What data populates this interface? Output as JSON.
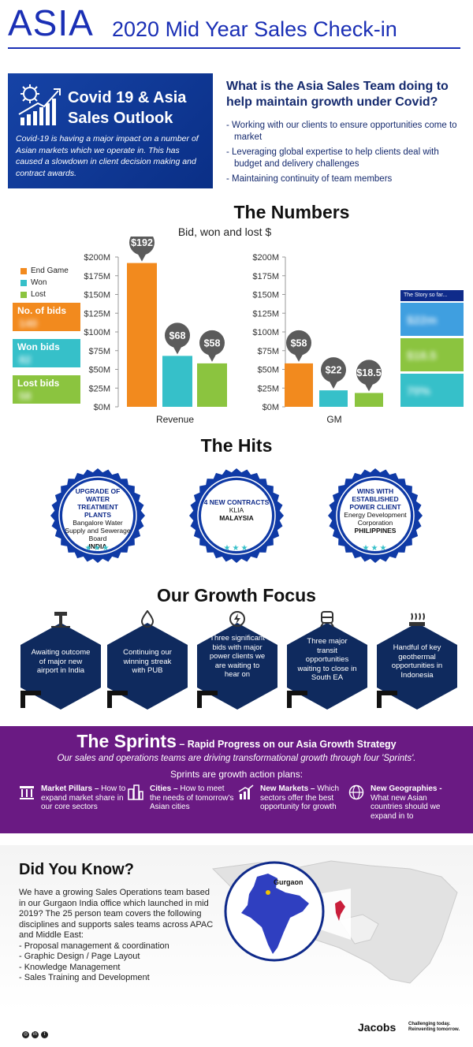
{
  "header": {
    "asia": "ASIA",
    "title": "2020 Mid Year Sales Check-in"
  },
  "covid": {
    "title_line1": "Covid 19 & Asia",
    "title_line2": "Sales Outlook",
    "text": "Covid-19 is having a major impact on a number of Asian markets which we operate in. This has caused a slowdown in client decision making and contract awards."
  },
  "question": {
    "title": "What is the Asia Sales Team doing to help maintain growth under Covid?",
    "bullets": [
      "- Working with our clients to ensure opportunities come to market",
      "- Leveraging global expertise to help clients deal with budget and delivery challenges",
      "- Maintaining continuity of team members"
    ]
  },
  "numbers": {
    "title": "The Numbers",
    "subtitle": "Bid, won and lost $",
    "legend": [
      "End Game",
      "Won",
      "Lost"
    ],
    "kpi": [
      {
        "label": "No. of bids",
        "value": "140",
        "color": "#f28a1e"
      },
      {
        "label": "Won bids",
        "value": "82",
        "color": "#36c0c9"
      },
      {
        "label": "Lost bids",
        "value": "58",
        "color": "#8bc43f"
      }
    ],
    "story": {
      "header": "The Story so far...",
      "boxes": [
        {
          "value": "$22m",
          "color": "#3f9fe0"
        },
        {
          "value": "$18.5",
          "color": "#8bc43f"
        },
        {
          "value": "70%",
          "color": "#36c0c9"
        }
      ]
    }
  },
  "chart_data": [
    {
      "type": "bar",
      "categories": [
        "End Game",
        "Won",
        "Lost"
      ],
      "series": [
        {
          "name": "Revenue",
          "values": [
            192,
            68,
            58
          ]
        }
      ],
      "value_labels": [
        "$192",
        "$68",
        "$58"
      ],
      "xlabel": "Revenue",
      "ylim": [
        0,
        200
      ],
      "ticks": [
        "$0M",
        "$25M",
        "$50M",
        "$75M",
        "$100M",
        "$125M",
        "$150M",
        "$175M",
        "$200M"
      ],
      "colors": [
        "#f28a1e",
        "#36c0c9",
        "#8bc43f"
      ]
    },
    {
      "type": "bar",
      "categories": [
        "End Game",
        "Won",
        "Lost"
      ],
      "series": [
        {
          "name": "GM",
          "values": [
            58,
            22,
            18.5
          ]
        }
      ],
      "value_labels": [
        "$58",
        "$22",
        "$18.5"
      ],
      "xlabel": "GM",
      "ylim": [
        0,
        200
      ],
      "ticks": [
        "$0M",
        "$25M",
        "$50M",
        "$75M",
        "$100M",
        "$125M",
        "$150M",
        "$175M",
        "$200M"
      ],
      "colors": [
        "#f28a1e",
        "#36c0c9",
        "#8bc43f"
      ]
    }
  ],
  "hits": {
    "title": "The Hits",
    "items": [
      {
        "head": "UPGRADE OF WATER TREATMENT PLANTS",
        "client": "Bangalore Water Supply and Sewerage Board",
        "country": "INDIA"
      },
      {
        "head": "4 NEW CONTRACTS",
        "client": "KLIA",
        "country": "MALAYSIA"
      },
      {
        "head": "WINS WITH ESTABLISHED POWER CLIENT",
        "client": "Energy Development Corporation",
        "country": "PHILIPPINES"
      }
    ],
    "stars": "★★★"
  },
  "growth": {
    "title": "Our Growth Focus",
    "items": [
      {
        "text": "Awaiting outcome of major new airport in India",
        "icon": "airport-icon"
      },
      {
        "text": "Continuing our winning streak with PUB",
        "icon": "water-drop-icon"
      },
      {
        "text": "Three significant bids with major power clients we are waiting to hear on",
        "icon": "power-icon"
      },
      {
        "text": "Three major transit opportunities waiting to close in South EA",
        "icon": "train-icon"
      },
      {
        "text": "Handful of key geothermal opportunities in Indonesia",
        "icon": "geothermal-icon"
      }
    ]
  },
  "sprints": {
    "title": "The Sprints",
    "title_suffix": " – Rapid Progress on our Asia Growth Strategy",
    "desc": "Our sales and operations teams are driving  transformational growth through four 'Sprints'.",
    "plans": "Sprints are growth action plans:",
    "items": [
      {
        "label": "Market Pillars –",
        "text": " How to expand market share in our core sectors",
        "icon": "pillars-icon"
      },
      {
        "label": "Cities –",
        "text": " How to meet the needs of tomorrow's Asian cities",
        "icon": "city-icon"
      },
      {
        "label": "New Markets –",
        "text": " Which sectors offer the best opportunity for growth",
        "icon": "chart-icon"
      },
      {
        "label": "New Geographies -",
        "text": " What new Asian countries should we expand in to",
        "icon": "globe-icon"
      }
    ]
  },
  "dyk": {
    "title": "Did You Know?",
    "text": "We have a growing Sales Operations team based in our Gurgaon India office which launched in mid 2019? The 25 person team covers the following disciplines and supports sales teams across APAC and Middle East:",
    "list": [
      "- Proposal management & coordination",
      "- Graphic Design / Page Layout",
      "- Knowledge Management",
      "- Sales Training and Development"
    ],
    "map_label": "Gurgaon"
  },
  "footer": {
    "brand": "Jacobs",
    "tagline_1": "Challenging today.",
    "tagline_2": "Reinventing tomorrow."
  }
}
